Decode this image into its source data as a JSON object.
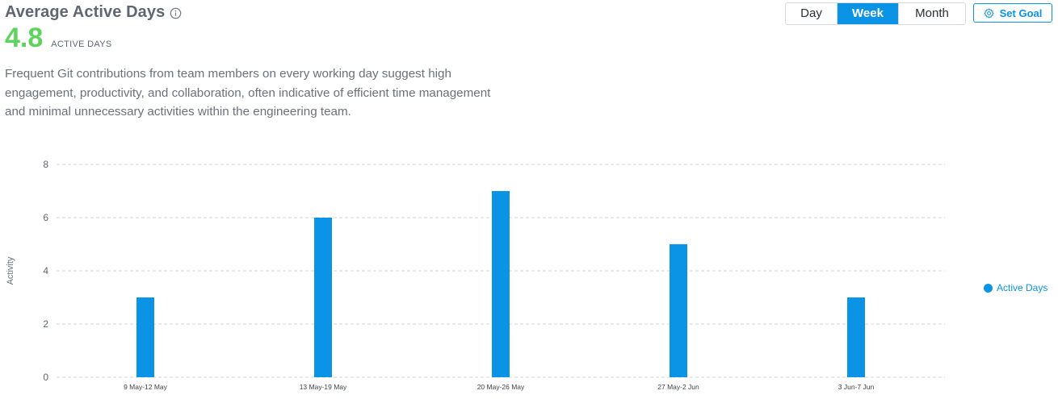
{
  "header": {
    "title": "Average Active Days",
    "metric_value": "4.8",
    "metric_unit": "ACTIVE DAYS",
    "description": "Frequent Git contributions from team members on every working day suggest high engagement, productivity, and collaboration, often indicative of efficient time management and minimal unnecessary activities within the engineering team."
  },
  "controls": {
    "granularity_options": [
      "Day",
      "Week",
      "Month"
    ],
    "selected_granularity": "Week",
    "set_goal_label": "Set Goal"
  },
  "icons": {
    "info": "info-icon",
    "gear": "gear-icon"
  },
  "colors": {
    "accent": "#0b93e6",
    "metric": "#5ed35e",
    "bar": "#0b93e6"
  },
  "chart_data": {
    "type": "bar",
    "categories": [
      "9 May-12 May",
      "13 May-19 May",
      "20 May-26 May",
      "27 May-2 Jun",
      "3 Jun-7 Jun"
    ],
    "series": [
      {
        "name": "Active Days",
        "values": [
          3,
          6,
          7,
          5,
          3
        ]
      }
    ],
    "ylabel": "Activity",
    "xlabel": "",
    "ylim": [
      0,
      8
    ],
    "yticks": [
      0,
      2,
      4,
      6,
      8
    ],
    "grid": true,
    "legend_position": "right"
  }
}
